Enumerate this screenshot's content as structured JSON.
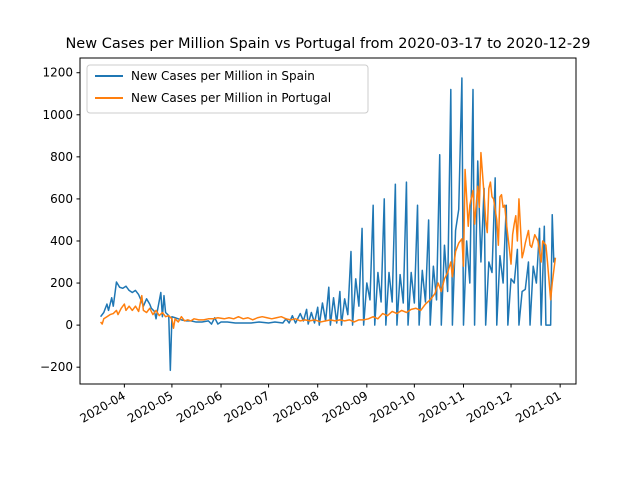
{
  "chart_data": {
    "type": "line",
    "title": "New Cases per Million Spain vs Portugal from 2020-03-17 to 2020-12-29",
    "xlabel": "",
    "ylabel": "",
    "x_start": "2020-03-17",
    "x_end": "2020-12-29",
    "xlim": [
      "2020-03-04",
      "2021-01-11"
    ],
    "ylim": [
      -280,
      1270
    ],
    "x_ticks": [
      "2020-04",
      "2020-05",
      "2020-06",
      "2020-07",
      "2020-08",
      "2020-09",
      "2020-10",
      "2020-11",
      "2020-12",
      "2021-01"
    ],
    "y_ticks": [
      -200,
      0,
      200,
      400,
      600,
      800,
      1000,
      1200
    ],
    "legend_position": "top-left",
    "grid": false,
    "series": [
      {
        "name": "New Cases per Million in Spain",
        "color": "#1f77b4",
        "points": [
          [
            "2020-03-17",
            40
          ],
          [
            "2020-03-19",
            60
          ],
          [
            "2020-03-21",
            100
          ],
          [
            "2020-03-22",
            70
          ],
          [
            "2020-03-24",
            130
          ],
          [
            "2020-03-25",
            90
          ],
          [
            "2020-03-27",
            205
          ],
          [
            "2020-03-29",
            180
          ],
          [
            "2020-03-31",
            175
          ],
          [
            "2020-04-02",
            185
          ],
          [
            "2020-04-04",
            165
          ],
          [
            "2020-04-06",
            155
          ],
          [
            "2020-04-08",
            165
          ],
          [
            "2020-04-10",
            145
          ],
          [
            "2020-04-12",
            110
          ],
          [
            "2020-04-13",
            90
          ],
          [
            "2020-04-15",
            125
          ],
          [
            "2020-04-17",
            100
          ],
          [
            "2020-04-18",
            80
          ],
          [
            "2020-04-20",
            65
          ],
          [
            "2020-04-21",
            30
          ],
          [
            "2020-04-22",
            75
          ],
          [
            "2020-04-24",
            155
          ],
          [
            "2020-04-25",
            40
          ],
          [
            "2020-04-26",
            140
          ],
          [
            "2020-04-27",
            60
          ],
          [
            "2020-04-29",
            45
          ],
          [
            "2020-04-30",
            -215
          ],
          [
            "2020-05-01",
            40
          ],
          [
            "2020-05-03",
            35
          ],
          [
            "2020-05-05",
            30
          ],
          [
            "2020-05-07",
            25
          ],
          [
            "2020-05-10",
            20
          ],
          [
            "2020-05-13",
            20
          ],
          [
            "2020-05-16",
            15
          ],
          [
            "2020-05-20",
            15
          ],
          [
            "2020-05-24",
            20
          ],
          [
            "2020-05-26",
            5
          ],
          [
            "2020-05-28",
            35
          ],
          [
            "2020-05-30",
            5
          ],
          [
            "2020-06-01",
            15
          ],
          [
            "2020-06-05",
            15
          ],
          [
            "2020-06-10",
            10
          ],
          [
            "2020-06-15",
            10
          ],
          [
            "2020-06-20",
            10
          ],
          [
            "2020-06-25",
            15
          ],
          [
            "2020-07-01",
            10
          ],
          [
            "2020-07-05",
            15
          ],
          [
            "2020-07-10",
            10
          ],
          [
            "2020-07-12",
            30
          ],
          [
            "2020-07-14",
            10
          ],
          [
            "2020-07-16",
            45
          ],
          [
            "2020-07-18",
            10
          ],
          [
            "2020-07-21",
            55
          ],
          [
            "2020-07-23",
            20
          ],
          [
            "2020-07-25",
            75
          ],
          [
            "2020-07-26",
            5
          ],
          [
            "2020-07-28",
            60
          ],
          [
            "2020-07-30",
            10
          ],
          [
            "2020-08-01",
            85
          ],
          [
            "2020-08-02",
            0
          ],
          [
            "2020-08-04",
            105
          ],
          [
            "2020-08-06",
            20
          ],
          [
            "2020-08-08",
            180
          ],
          [
            "2020-08-09",
            0
          ],
          [
            "2020-08-11",
            130
          ],
          [
            "2020-08-13",
            10
          ],
          [
            "2020-08-15",
            160
          ],
          [
            "2020-08-16",
            0
          ],
          [
            "2020-08-18",
            125
          ],
          [
            "2020-08-20",
            50
          ],
          [
            "2020-08-22",
            350
          ],
          [
            "2020-08-23",
            0
          ],
          [
            "2020-08-25",
            220
          ],
          [
            "2020-08-27",
            90
          ],
          [
            "2020-08-29",
            460
          ],
          [
            "2020-08-30",
            0
          ],
          [
            "2020-09-01",
            200
          ],
          [
            "2020-09-03",
            120
          ],
          [
            "2020-09-05",
            570
          ],
          [
            "2020-09-06",
            0
          ],
          [
            "2020-09-08",
            250
          ],
          [
            "2020-09-10",
            110
          ],
          [
            "2020-09-12",
            600
          ],
          [
            "2020-09-13",
            0
          ],
          [
            "2020-09-15",
            250
          ],
          [
            "2020-09-17",
            110
          ],
          [
            "2020-09-19",
            670
          ],
          [
            "2020-09-20",
            0
          ],
          [
            "2020-09-22",
            240
          ],
          [
            "2020-09-24",
            105
          ],
          [
            "2020-09-26",
            680
          ],
          [
            "2020-09-27",
            0
          ],
          [
            "2020-09-29",
            250
          ],
          [
            "2020-10-01",
            105
          ],
          [
            "2020-10-03",
            570
          ],
          [
            "2020-10-04",
            0
          ],
          [
            "2020-10-06",
            260
          ],
          [
            "2020-10-08",
            110
          ],
          [
            "2020-10-10",
            500
          ],
          [
            "2020-10-11",
            0
          ],
          [
            "2020-10-13",
            280
          ],
          [
            "2020-10-15",
            120
          ],
          [
            "2020-10-17",
            810
          ],
          [
            "2020-10-18",
            0
          ],
          [
            "2020-10-20",
            380
          ],
          [
            "2020-10-22",
            160
          ],
          [
            "2020-10-24",
            1120
          ],
          [
            "2020-10-25",
            0
          ],
          [
            "2020-10-27",
            450
          ],
          [
            "2020-10-29",
            550
          ],
          [
            "2020-10-31",
            1175
          ],
          [
            "2020-11-01",
            0
          ],
          [
            "2020-11-03",
            400
          ],
          [
            "2020-11-05",
            200
          ],
          [
            "2020-11-07",
            1120
          ],
          [
            "2020-11-08",
            0
          ],
          [
            "2020-11-10",
            780
          ],
          [
            "2020-11-12",
            300
          ],
          [
            "2020-11-14",
            650
          ],
          [
            "2020-11-15",
            0
          ],
          [
            "2020-11-17",
            300
          ],
          [
            "2020-11-19",
            250
          ],
          [
            "2020-11-21",
            700
          ],
          [
            "2020-11-22",
            0
          ],
          [
            "2020-11-24",
            330
          ],
          [
            "2020-11-26",
            200
          ],
          [
            "2020-11-28",
            570
          ],
          [
            "2020-11-29",
            0
          ],
          [
            "2020-12-01",
            220
          ],
          [
            "2020-12-03",
            200
          ],
          [
            "2020-12-05",
            360
          ],
          [
            "2020-12-06",
            0
          ],
          [
            "2020-12-08",
            160
          ],
          [
            "2020-12-10",
            170
          ],
          [
            "2020-12-12",
            300
          ],
          [
            "2020-12-13",
            0
          ],
          [
            "2020-12-15",
            280
          ],
          [
            "2020-12-17",
            200
          ],
          [
            "2020-12-19",
            460
          ],
          [
            "2020-12-20",
            0
          ],
          [
            "2020-12-22",
            470
          ],
          [
            "2020-12-23",
            0
          ],
          [
            "2020-12-26",
            0
          ],
          [
            "2020-12-27",
            525
          ],
          [
            "2020-12-28",
            300
          ],
          [
            "2020-12-29",
            320
          ]
        ]
      },
      {
        "name": "New Cases per Million in Portugal",
        "color": "#ff7f0e",
        "points": [
          [
            "2020-03-17",
            15
          ],
          [
            "2020-03-18",
            5
          ],
          [
            "2020-03-19",
            30
          ],
          [
            "2020-03-21",
            40
          ],
          [
            "2020-03-23",
            50
          ],
          [
            "2020-03-25",
            55
          ],
          [
            "2020-03-27",
            70
          ],
          [
            "2020-03-28",
            50
          ],
          [
            "2020-03-30",
            80
          ],
          [
            "2020-04-01",
            100
          ],
          [
            "2020-04-02",
            70
          ],
          [
            "2020-04-04",
            90
          ],
          [
            "2020-04-06",
            70
          ],
          [
            "2020-04-08",
            90
          ],
          [
            "2020-04-10",
            65
          ],
          [
            "2020-04-12",
            140
          ],
          [
            "2020-04-13",
            70
          ],
          [
            "2020-04-15",
            60
          ],
          [
            "2020-04-17",
            80
          ],
          [
            "2020-04-19",
            50
          ],
          [
            "2020-04-21",
            70
          ],
          [
            "2020-04-23",
            45
          ],
          [
            "2020-04-25",
            60
          ],
          [
            "2020-04-27",
            40
          ],
          [
            "2020-04-29",
            45
          ],
          [
            "2020-05-01",
            30
          ],
          [
            "2020-05-02",
            -15
          ],
          [
            "2020-05-03",
            30
          ],
          [
            "2020-05-05",
            15
          ],
          [
            "2020-05-07",
            40
          ],
          [
            "2020-05-09",
            20
          ],
          [
            "2020-05-11",
            25
          ],
          [
            "2020-05-13",
            20
          ],
          [
            "2020-05-15",
            30
          ],
          [
            "2020-05-18",
            25
          ],
          [
            "2020-05-21",
            25
          ],
          [
            "2020-05-24",
            30
          ],
          [
            "2020-05-27",
            30
          ],
          [
            "2020-05-30",
            35
          ],
          [
            "2020-06-03",
            30
          ],
          [
            "2020-06-06",
            35
          ],
          [
            "2020-06-09",
            30
          ],
          [
            "2020-06-12",
            40
          ],
          [
            "2020-06-15",
            30
          ],
          [
            "2020-06-18",
            35
          ],
          [
            "2020-06-21",
            25
          ],
          [
            "2020-06-24",
            35
          ],
          [
            "2020-06-27",
            40
          ],
          [
            "2020-06-30",
            35
          ],
          [
            "2020-07-03",
            30
          ],
          [
            "2020-07-06",
            35
          ],
          [
            "2020-07-09",
            40
          ],
          [
            "2020-07-12",
            30
          ],
          [
            "2020-07-15",
            25
          ],
          [
            "2020-07-18",
            30
          ],
          [
            "2020-07-21",
            20
          ],
          [
            "2020-07-24",
            25
          ],
          [
            "2020-07-27",
            20
          ],
          [
            "2020-07-30",
            25
          ],
          [
            "2020-08-03",
            15
          ],
          [
            "2020-08-06",
            20
          ],
          [
            "2020-08-09",
            25
          ],
          [
            "2020-08-12",
            20
          ],
          [
            "2020-08-15",
            25
          ],
          [
            "2020-08-18",
            20
          ],
          [
            "2020-08-21",
            25
          ],
          [
            "2020-08-24",
            15
          ],
          [
            "2020-08-27",
            25
          ],
          [
            "2020-08-30",
            25
          ],
          [
            "2020-09-02",
            30
          ],
          [
            "2020-09-05",
            40
          ],
          [
            "2020-09-08",
            30
          ],
          [
            "2020-09-11",
            55
          ],
          [
            "2020-09-14",
            45
          ],
          [
            "2020-09-17",
            65
          ],
          [
            "2020-09-20",
            55
          ],
          [
            "2020-09-23",
            70
          ],
          [
            "2020-09-26",
            60
          ],
          [
            "2020-09-29",
            75
          ],
          [
            "2020-10-02",
            80
          ],
          [
            "2020-10-05",
            70
          ],
          [
            "2020-10-08",
            100
          ],
          [
            "2020-10-11",
            120
          ],
          [
            "2020-10-14",
            150
          ],
          [
            "2020-10-16",
            200
          ],
          [
            "2020-10-18",
            160
          ],
          [
            "2020-10-20",
            220
          ],
          [
            "2020-10-22",
            250
          ],
          [
            "2020-10-24",
            300
          ],
          [
            "2020-10-25",
            230
          ],
          [
            "2020-10-27",
            350
          ],
          [
            "2020-10-29",
            390
          ],
          [
            "2020-10-31",
            410
          ],
          [
            "2020-11-01",
            280
          ],
          [
            "2020-11-02",
            740
          ],
          [
            "2020-11-04",
            470
          ],
          [
            "2020-11-05",
            570
          ],
          [
            "2020-11-07",
            640
          ],
          [
            "2020-11-08",
            480
          ],
          [
            "2020-11-10",
            660
          ],
          [
            "2020-11-11",
            560
          ],
          [
            "2020-11-12",
            820
          ],
          [
            "2020-11-14",
            620
          ],
          [
            "2020-11-15",
            500
          ],
          [
            "2020-11-16",
            440
          ],
          [
            "2020-11-17",
            650
          ],
          [
            "2020-11-18",
            680
          ],
          [
            "2020-11-19",
            610
          ],
          [
            "2020-11-20",
            600
          ],
          [
            "2020-11-22",
            500
          ],
          [
            "2020-11-23",
            380
          ],
          [
            "2020-11-24",
            610
          ],
          [
            "2020-11-25",
            620
          ],
          [
            "2020-11-26",
            560
          ],
          [
            "2020-11-27",
            570
          ],
          [
            "2020-11-28",
            490
          ],
          [
            "2020-11-30",
            360
          ],
          [
            "2020-12-01",
            290
          ],
          [
            "2020-12-02",
            430
          ],
          [
            "2020-12-03",
            480
          ],
          [
            "2020-12-04",
            520
          ],
          [
            "2020-12-05",
            400
          ],
          [
            "2020-12-06",
            600
          ],
          [
            "2020-12-08",
            320
          ],
          [
            "2020-12-09",
            350
          ],
          [
            "2020-12-10",
            390
          ],
          [
            "2020-12-12",
            450
          ],
          [
            "2020-12-13",
            380
          ],
          [
            "2020-12-14",
            370
          ],
          [
            "2020-12-16",
            430
          ],
          [
            "2020-12-18",
            400
          ],
          [
            "2020-12-20",
            300
          ],
          [
            "2020-12-21",
            400
          ],
          [
            "2020-12-23",
            380
          ],
          [
            "2020-12-24",
            300
          ],
          [
            "2020-12-26",
            120
          ],
          [
            "2020-12-27",
            200
          ],
          [
            "2020-12-29",
            320
          ]
        ]
      }
    ]
  }
}
